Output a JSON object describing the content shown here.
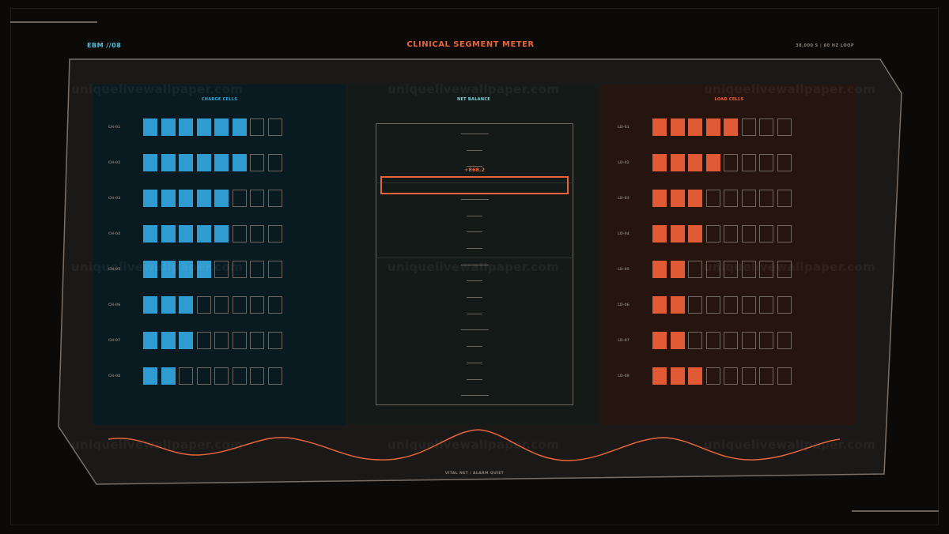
{
  "header": {
    "left_code": "EBM //08",
    "title": "CLINICAL SEGMENT METER",
    "right_info": "38,000 S  |  60 HZ LOOP"
  },
  "charge_panel": {
    "title": "CHARGE CELLS",
    "color": "#2f9bd0",
    "rows": [
      {
        "label": "CH-01",
        "filled": 6
      },
      {
        "label": "CH-02",
        "filled": 6
      },
      {
        "label": "CH-03",
        "filled": 5
      },
      {
        "label": "CH-04",
        "filled": 5
      },
      {
        "label": "CH-05",
        "filled": 4
      },
      {
        "label": "CH-06",
        "filled": 3
      },
      {
        "label": "CH-07",
        "filled": 3
      },
      {
        "label": "CH-08",
        "filled": 2
      }
    ],
    "total_cells": 8
  },
  "balance_panel": {
    "title": "NET BALANCE",
    "value": "+868.2"
  },
  "load_panel": {
    "title": "LOAD CELLS",
    "color": "#e05a36",
    "rows": [
      {
        "label": "LD-01",
        "filled": 5
      },
      {
        "label": "LD-02",
        "filled": 4
      },
      {
        "label": "LD-03",
        "filled": 3
      },
      {
        "label": "LD-04",
        "filled": 3
      },
      {
        "label": "LD-05",
        "filled": 2
      },
      {
        "label": "LD-06",
        "filled": 2
      },
      {
        "label": "LD-07",
        "filled": 2
      },
      {
        "label": "LD-08",
        "filled": 3
      }
    ],
    "total_cells": 8
  },
  "status": "VITAL NET  /  ALARM QUIET",
  "watermark": "uniquelivewallpaper.com",
  "colors": {
    "accent_orange": "#e8643a",
    "accent_cyan": "#4fc3e0",
    "frame_stroke": "#7a7068"
  }
}
